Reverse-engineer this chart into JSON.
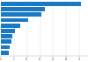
{
  "values": [
    30.5,
    17.0,
    15.5,
    10.5,
    7.5,
    5.5,
    4.5,
    4.0,
    3.5,
    3.0
  ],
  "bar_color": "#1a79c4",
  "background_color": "#ffffff",
  "xlim": [
    0,
    33
  ],
  "grid_color": "#e0e0e0"
}
